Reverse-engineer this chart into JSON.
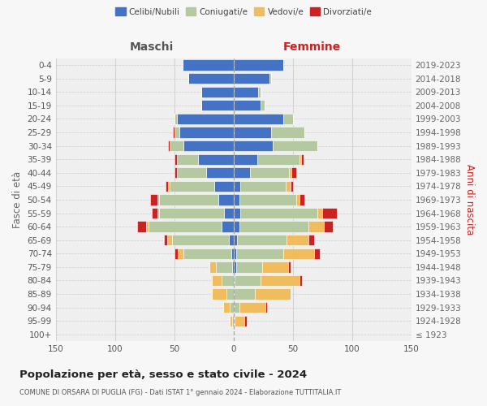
{
  "age_groups": [
    "0-4",
    "5-9",
    "10-14",
    "15-19",
    "20-24",
    "25-29",
    "30-34",
    "35-39",
    "40-44",
    "45-49",
    "50-54",
    "55-59",
    "60-64",
    "65-69",
    "70-74",
    "75-79",
    "80-84",
    "85-89",
    "90-94",
    "95-99",
    "100+"
  ],
  "birth_years": [
    "2019-2023",
    "2014-2018",
    "2009-2013",
    "2004-2008",
    "1999-2003",
    "1994-1998",
    "1989-1993",
    "1984-1988",
    "1979-1983",
    "1974-1978",
    "1969-1973",
    "1964-1968",
    "1959-1963",
    "1954-1958",
    "1949-1953",
    "1944-1948",
    "1939-1943",
    "1934-1938",
    "1929-1933",
    "1924-1928",
    "≤ 1923"
  ],
  "male_celibi": [
    43,
    38,
    27,
    27,
    48,
    46,
    42,
    30,
    23,
    16,
    13,
    8,
    10,
    4,
    2,
    1,
    0,
    0,
    0,
    0,
    0
  ],
  "male_coniugati": [
    0,
    0,
    0,
    0,
    2,
    4,
    12,
    18,
    25,
    38,
    50,
    55,
    62,
    48,
    40,
    14,
    10,
    6,
    3,
    1,
    0
  ],
  "male_vedovi": [
    0,
    0,
    0,
    0,
    0,
    0,
    0,
    0,
    0,
    1,
    1,
    1,
    2,
    4,
    5,
    5,
    8,
    12,
    6,
    2,
    0
  ],
  "male_divorziati": [
    0,
    0,
    0,
    0,
    0,
    1,
    1,
    2,
    2,
    2,
    6,
    5,
    7,
    3,
    3,
    0,
    0,
    0,
    0,
    0,
    0
  ],
  "female_nubili": [
    42,
    30,
    21,
    23,
    42,
    32,
    33,
    20,
    14,
    6,
    5,
    6,
    5,
    3,
    2,
    2,
    1,
    0,
    0,
    0,
    0
  ],
  "female_coniugate": [
    0,
    2,
    2,
    3,
    8,
    28,
    38,
    36,
    33,
    38,
    48,
    65,
    58,
    42,
    40,
    22,
    22,
    18,
    5,
    1,
    0
  ],
  "female_vedove": [
    0,
    0,
    0,
    0,
    0,
    0,
    0,
    1,
    2,
    4,
    3,
    4,
    13,
    18,
    26,
    22,
    33,
    30,
    22,
    8,
    0
  ],
  "female_divorziate": [
    0,
    0,
    0,
    0,
    0,
    0,
    0,
    2,
    4,
    2,
    4,
    12,
    8,
    5,
    5,
    2,
    2,
    0,
    1,
    2,
    0
  ],
  "color_celibi": "#4472c4",
  "color_coniugati": "#b5c9a0",
  "color_vedovi": "#f0bc5e",
  "color_divorziati": "#cc2222",
  "xlim": 150,
  "title": "Popolazione per età, sesso e stato civile - 2024",
  "subtitle": "COMUNE DI ORSARA DI PUGLIA (FG) - Dati ISTAT 1° gennaio 2024 - Elaborazione TUTTITALIA.IT",
  "ylabel_left": "Fasce di età",
  "ylabel_right": "Anni di nascita",
  "label_maschi": "Maschi",
  "label_femmine": "Femmine",
  "bg_color": "#f7f7f7",
  "plot_bg": "#efefef",
  "legend_labels": [
    "Celibi/Nubili",
    "Coniugati/e",
    "Vedovi/e",
    "Divorziati/e"
  ],
  "xticks": [
    -150,
    -100,
    -50,
    0,
    50,
    100,
    150
  ],
  "xticklabels": [
    "150",
    "100",
    "50",
    "0",
    "50",
    "100",
    "150"
  ]
}
